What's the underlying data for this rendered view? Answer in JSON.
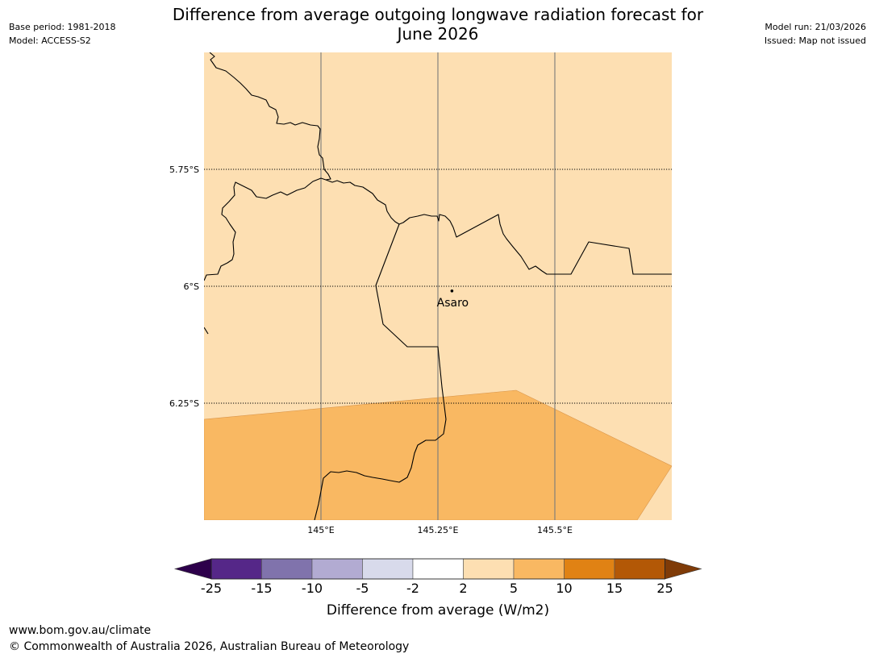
{
  "header": {
    "title_line1": "Difference from average outgoing longwave radiation forecast for",
    "title_line2": "June 2026",
    "base_period": "Base period: 1981-2018",
    "model": "Model: ACCESS-S2",
    "model_run": "Model run: 21/03/2026",
    "issued": "Issued: Map not issued"
  },
  "map": {
    "lon_range": [
      144.75,
      145.75
    ],
    "lat_range": [
      -6.5,
      -5.5
    ],
    "latitude_lines": [
      {
        "value": -5.75,
        "label": "5.75°S"
      },
      {
        "value": -6.0,
        "label": "6°S"
      },
      {
        "value": -6.25,
        "label": "6.25°S"
      }
    ],
    "longitude_lines": [
      {
        "value": 145.0,
        "label": "145°E"
      },
      {
        "value": 145.25,
        "label": "145.25°E"
      },
      {
        "value": 145.5,
        "label": "145.5°E"
      }
    ],
    "background_category": "2 to 5",
    "overlay_category": "5 to 10",
    "place": {
      "name": "Asaro",
      "lon": 145.28,
      "lat": -6.01
    }
  },
  "colorbar": {
    "ticks": [
      "-25",
      "-15",
      "-10",
      "-5",
      "-2",
      "2",
      "5",
      "10",
      "15",
      "25"
    ],
    "colors": [
      "#552788",
      "#8073ac",
      "#b2abd2",
      "#d8daeb",
      "#ffffff",
      "#fddfb2",
      "#f9b862",
      "#e08214",
      "#b35806"
    ],
    "under_color": "#2d004b",
    "over_color": "#7f3b08",
    "label": "Difference from average (W/m2)"
  },
  "footer": {
    "url": "www.bom.gov.au/climate",
    "copyright": "© Commonwealth of Australia 2026, Australian Bureau of Meteorology"
  }
}
